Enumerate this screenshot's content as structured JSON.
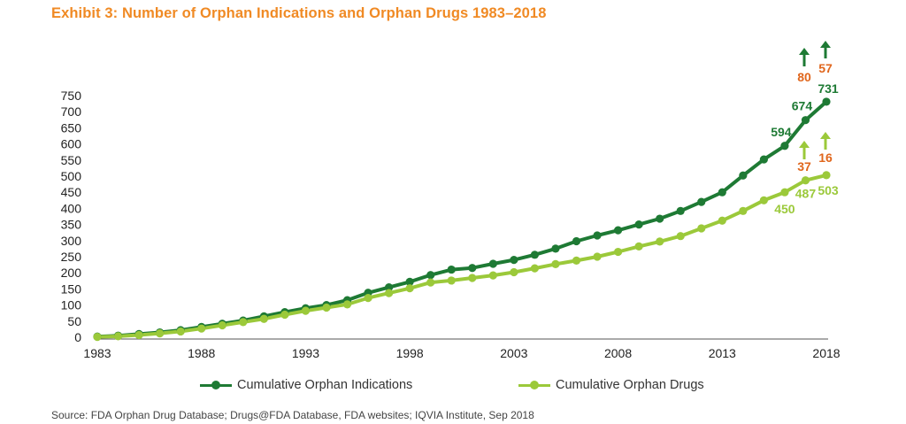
{
  "title": "Exhibit 3: Number of Orphan Indications and Orphan Drugs 1983–2018",
  "source": "Source: FDA Orphan Drug Database; Drugs@FDA Database, FDA websites; IQVIA Institute, Sep 2018",
  "colors": {
    "title": "#F08A24",
    "indications": "#1E7A34",
    "drugs": "#9BC93A",
    "annotation_orange": "#E0661C",
    "axis_text": "#222222"
  },
  "chart_data": {
    "type": "line",
    "title": "Number of Orphan Indications and Orphan Drugs 1983–2018",
    "xlabel": "",
    "ylabel": "",
    "xlim": [
      1983,
      2018
    ],
    "ylim": [
      0,
      750
    ],
    "x_ticks": [
      "1983",
      "1988",
      "1993",
      "1998",
      "2003",
      "2008",
      "2013",
      "2018"
    ],
    "y_ticks": [
      "0",
      "50",
      "100",
      "150",
      "200",
      "250",
      "300",
      "350",
      "400",
      "450",
      "500",
      "550",
      "600",
      "650",
      "700",
      "750"
    ],
    "grid": false,
    "legend": "bottom",
    "x": [
      1983,
      1984,
      1985,
      1986,
      1987,
      1988,
      1989,
      1990,
      1991,
      1992,
      1993,
      1994,
      1995,
      1996,
      1997,
      1998,
      1999,
      2000,
      2001,
      2002,
      2003,
      2004,
      2005,
      2006,
      2007,
      2008,
      2009,
      2010,
      2011,
      2012,
      2013,
      2014,
      2015,
      2016,
      2017,
      2018
    ],
    "series": [
      {
        "name": "Cumulative Orphan Indications",
        "color": "#1E7A34",
        "values": [
          2,
          5,
          10,
          15,
          22,
          32,
          42,
          52,
          65,
          78,
          90,
          100,
          115,
          138,
          155,
          172,
          193,
          210,
          215,
          228,
          240,
          256,
          275,
          298,
          316,
          332,
          350,
          368,
          392,
          420,
          450,
          502,
          552,
          594,
          674,
          731
        ]
      },
      {
        "name": "Cumulative Orphan Drugs",
        "color": "#9BC93A",
        "values": [
          1,
          3,
          7,
          12,
          18,
          27,
          37,
          47,
          57,
          70,
          82,
          92,
          102,
          122,
          137,
          152,
          170,
          176,
          184,
          192,
          202,
          214,
          227,
          238,
          250,
          265,
          282,
          297,
          314,
          338,
          362,
          392,
          425,
          450,
          487,
          503
        ]
      }
    ],
    "point_labels": [
      {
        "series": 0,
        "x": 2016,
        "value": 594,
        "text": "594"
      },
      {
        "series": 0,
        "x": 2017,
        "value": 674,
        "text": "674"
      },
      {
        "series": 0,
        "x": 2018,
        "value": 731,
        "text": "731"
      },
      {
        "series": 1,
        "x": 2016,
        "value": 450,
        "text": "450"
      },
      {
        "series": 1,
        "x": 2017,
        "value": 487,
        "text": "487"
      },
      {
        "series": 1,
        "x": 2018,
        "value": 503,
        "text": "503"
      }
    ],
    "increment_annotations": [
      {
        "series": 0,
        "x": 2017,
        "text": "80"
      },
      {
        "series": 0,
        "x": 2018,
        "text": "57"
      },
      {
        "series": 1,
        "x": 2017,
        "text": "37"
      },
      {
        "series": 1,
        "x": 2018,
        "text": "16"
      }
    ]
  }
}
